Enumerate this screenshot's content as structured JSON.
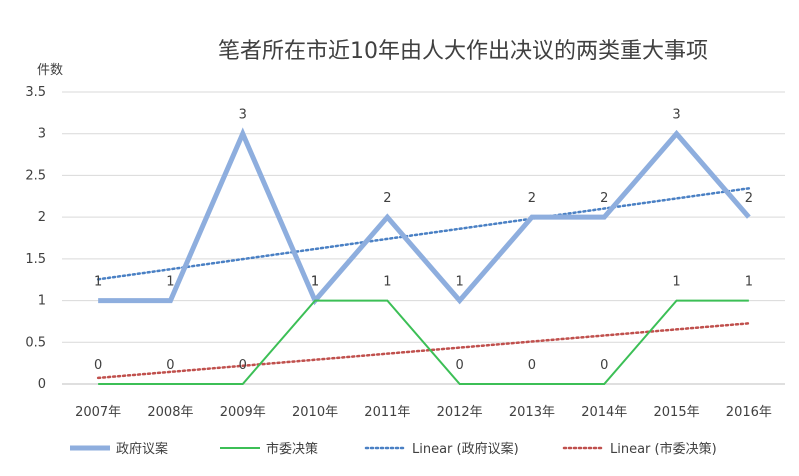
{
  "chart_data": {
    "type": "line",
    "title": "笔者所在市近10年由人大作出决议的两类重大事项",
    "ylabel": "件数",
    "xlabel": "",
    "categories": [
      "2007年",
      "2008年",
      "2009年",
      "2010年",
      "2011年",
      "2012年",
      "2013年",
      "2014年",
      "2015年",
      "2016年"
    ],
    "ylim": [
      0,
      3.5
    ],
    "yticks": [
      0,
      0.5,
      1,
      1.5,
      2,
      2.5,
      3,
      3.5
    ],
    "ytick_labels": [
      "0",
      "0.5",
      "1",
      "1.5",
      "2",
      "2.5",
      "3",
      "3.5"
    ],
    "grid": true,
    "legend_position": "bottom",
    "series": [
      {
        "name": "政府议案",
        "values": [
          1,
          1,
          3,
          1,
          2,
          1,
          2,
          2,
          3,
          2
        ],
        "labels": [
          "1",
          "1",
          "3",
          "1",
          "2",
          "1",
          "2",
          "2",
          "3",
          "2"
        ],
        "color": "#8eaede",
        "style": "solid-thick"
      },
      {
        "name": "市委决策",
        "values": [
          0,
          0,
          0,
          1,
          1,
          0,
          0,
          0,
          1,
          1
        ],
        "labels": [
          "0",
          "0",
          "0",
          "1",
          "1",
          "0",
          "0",
          "0",
          "1",
          "1"
        ],
        "color": "#3cbf56",
        "style": "solid"
      }
    ],
    "trendlines": [
      {
        "name": "Linear (政府议案)",
        "of_series": 0,
        "color": "#4a80c4"
      },
      {
        "name": "Linear (市委决策)",
        "of_series": 1,
        "color": "#c0504d"
      }
    ]
  }
}
